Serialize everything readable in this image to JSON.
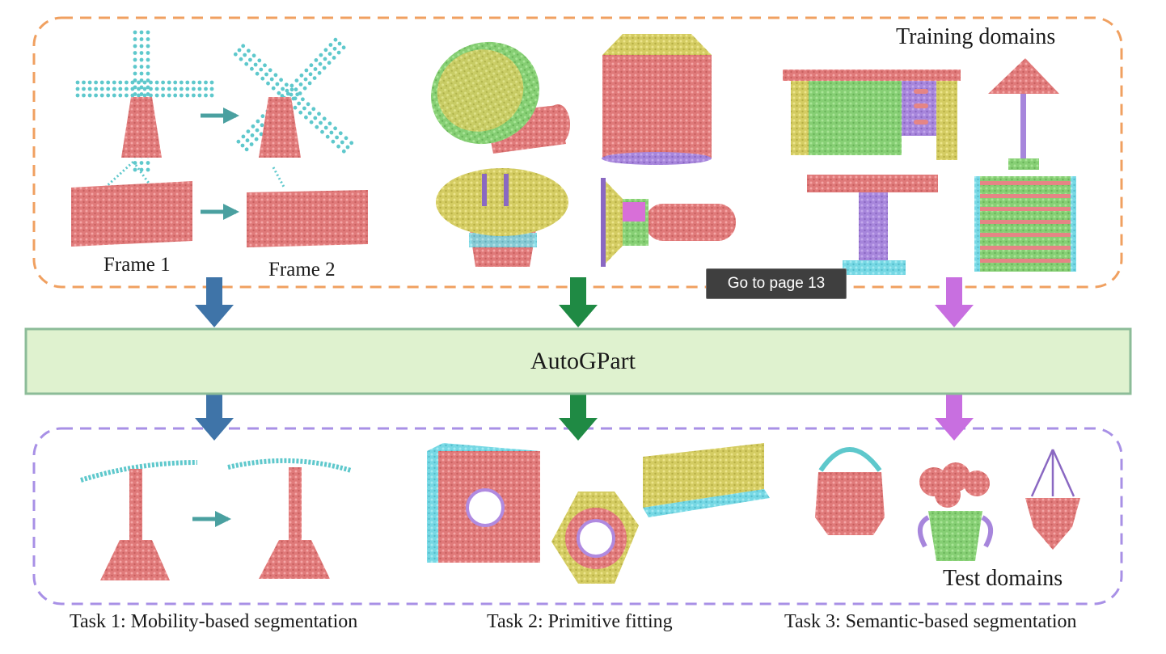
{
  "labels": {
    "training_domains": "Training domains",
    "test_domains": "Test domains",
    "frame1": "Frame 1",
    "frame2": "Frame 2",
    "core": "AutoGPart",
    "task1": "Task 1: Mobility-based segmentation",
    "task2": "Task 2: Primitive fitting",
    "task3": "Task 3: Semantic-based segmentation"
  },
  "tooltip": {
    "text": "Go to page 13"
  },
  "colors": {
    "training_border": "#f0a060",
    "test_border": "#a890e6",
    "core_fill": "#dff2cf",
    "core_border": "#8cbc98",
    "arrow_task1": "#3f74a8",
    "arrow_task2": "#1f8a44",
    "arrow_task3": "#c86fe0",
    "teal_arrow": "#4aa0a0",
    "pc_teal": "#5ec8cc",
    "pc_salmon": "#e58585",
    "pc_yellow": "#d9d36a",
    "pc_green": "#8bd27a",
    "pc_purple": "#b08ae0",
    "pc_cyan": "#7fdde8"
  },
  "icons": {
    "windmill": "windmill-point-cloud-icon",
    "basket": "basket-point-cloud-icon",
    "lamp": "lamp-point-cloud-icon",
    "desk": "desk-point-cloud-icon",
    "table": "table-point-cloud-icon",
    "shelf": "shelf-point-cloud-icon"
  }
}
